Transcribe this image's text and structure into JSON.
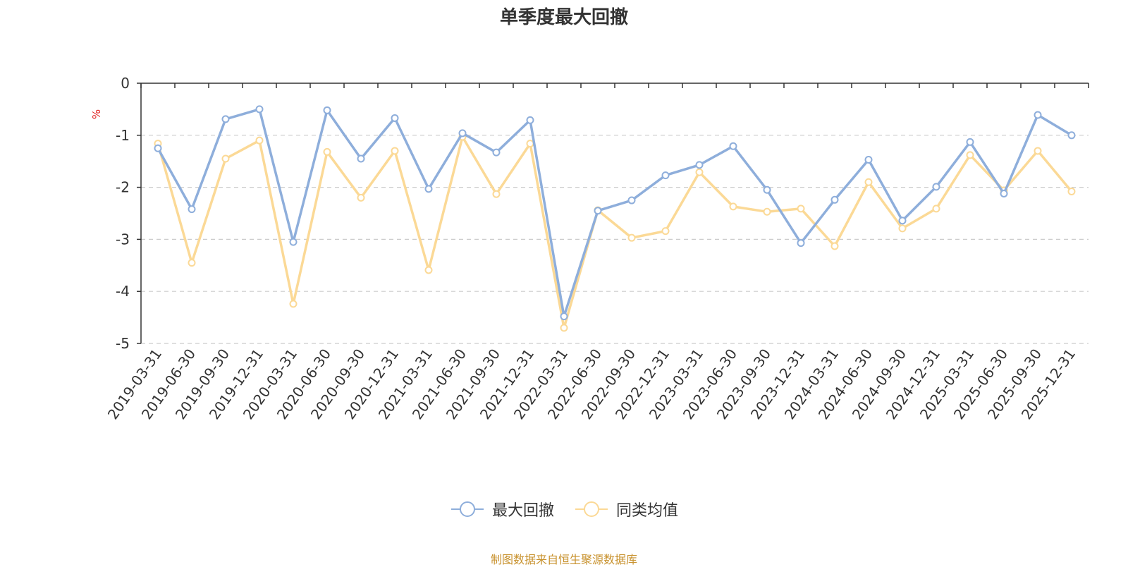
{
  "chart_data": {
    "type": "line",
    "title": "单季度最大回撤",
    "ylabel": "%",
    "ylim": [
      -5,
      0
    ],
    "yticks": [
      0,
      -1,
      -2,
      -3,
      -4,
      -5
    ],
    "grid": true,
    "legend_position": "bottom",
    "categories": [
      "2019-03-31",
      "2019-06-30",
      "2019-09-30",
      "2019-12-31",
      "2020-03-31",
      "2020-06-30",
      "2020-09-30",
      "2020-12-31",
      "2021-03-31",
      "2021-06-30",
      "2021-09-30",
      "2021-12-31",
      "2022-03-31",
      "2022-06-30",
      "2022-09-30",
      "2022-12-31",
      "2023-03-31",
      "2023-06-30",
      "2023-09-30",
      "2023-12-31",
      "2024-03-31",
      "2024-06-30",
      "2024-09-30",
      "2024-12-31",
      "2025-03-31",
      "2025-06-30",
      "2025-09-30",
      "2025-12-31"
    ],
    "series": [
      {
        "name": "最大回撤",
        "color": "#8eaedb",
        "values": [
          -1.25,
          -2.42,
          -0.69,
          -0.5,
          -3.05,
          -0.52,
          -1.45,
          -0.67,
          -2.03,
          -0.96,
          -1.33,
          -0.71,
          -4.48,
          -2.45,
          -2.25,
          -1.77,
          -1.57,
          -1.21,
          -2.05,
          -3.07,
          -2.24,
          -1.47,
          -2.64,
          -1.99,
          -1.13,
          -2.12,
          -0.61,
          -1.0
        ]
      },
      {
        "name": "同类均值",
        "color": "#fbd996",
        "values": [
          -1.16,
          -3.45,
          -1.45,
          -1.1,
          -4.24,
          -1.32,
          -2.2,
          -1.3,
          -3.59,
          -1.03,
          -2.13,
          -1.16,
          -4.7,
          -2.44,
          -2.97,
          -2.84,
          -1.71,
          -2.37,
          -2.47,
          -2.41,
          -3.13,
          -1.9,
          -2.79,
          -2.41,
          -1.38,
          -2.06,
          -1.3,
          -2.08
        ]
      }
    ]
  },
  "footer": {
    "source": "制图数据来自恒生聚源数据库"
  }
}
